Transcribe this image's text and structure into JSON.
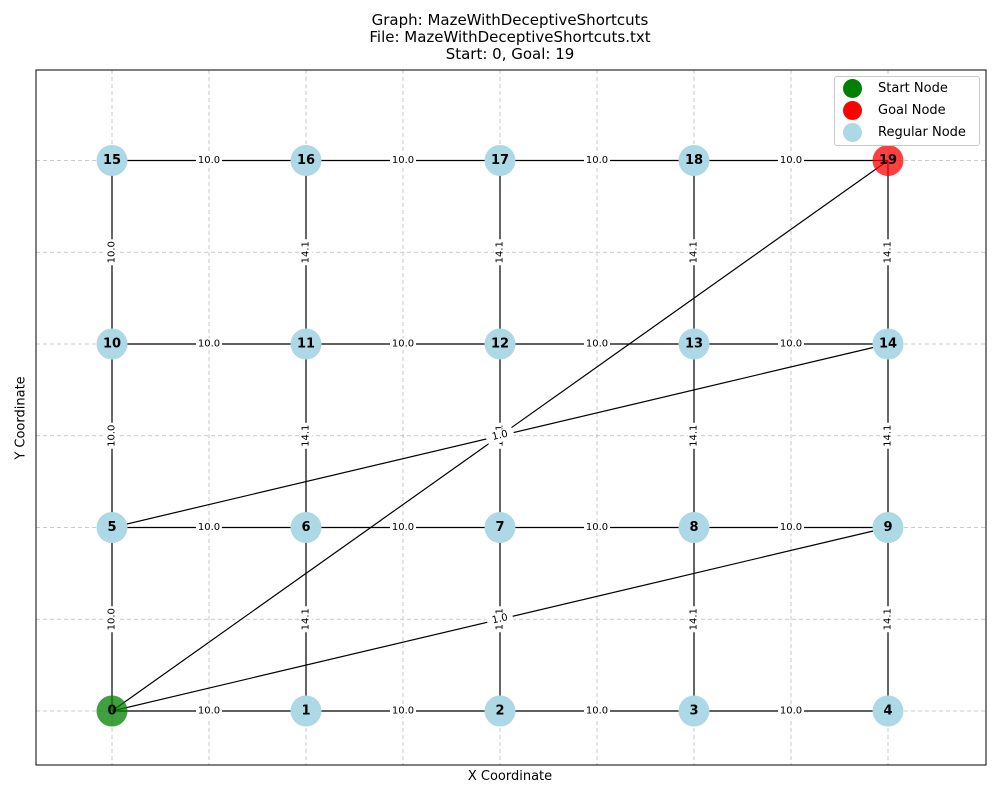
{
  "title": {
    "line1": "Graph: MazeWithDeceptiveShortcuts",
    "line2": "File: MazeWithDeceptiveShortcuts.txt",
    "line3": "Start: 0, Goal: 19"
  },
  "axes": {
    "xlabel": "X Coordinate",
    "ylabel": "Y Coordinate"
  },
  "legend": [
    {
      "label": "Start Node",
      "color": "#008000"
    },
    {
      "label": "Goal Node",
      "color": "#ff0000"
    },
    {
      "label": "Regular Node",
      "color": "#add8e6"
    }
  ],
  "colors": {
    "start": "#008000",
    "goal": "#ff0000",
    "regular": "#add8e6",
    "edge": "#000000",
    "grid": "#bbbbbb"
  },
  "start_node": "0",
  "goal_node": "19",
  "nodes": [
    {
      "id": "0",
      "x": 0,
      "y": 0
    },
    {
      "id": "1",
      "x": 1,
      "y": 0
    },
    {
      "id": "2",
      "x": 2,
      "y": 0
    },
    {
      "id": "3",
      "x": 3,
      "y": 0
    },
    {
      "id": "4",
      "x": 4,
      "y": 0
    },
    {
      "id": "5",
      "x": 0,
      "y": 1
    },
    {
      "id": "6",
      "x": 1,
      "y": 1
    },
    {
      "id": "7",
      "x": 2,
      "y": 1
    },
    {
      "id": "8",
      "x": 3,
      "y": 1
    },
    {
      "id": "9",
      "x": 4,
      "y": 1
    },
    {
      "id": "10",
      "x": 0,
      "y": 2
    },
    {
      "id": "11",
      "x": 1,
      "y": 2
    },
    {
      "id": "12",
      "x": 2,
      "y": 2
    },
    {
      "id": "13",
      "x": 3,
      "y": 2
    },
    {
      "id": "14",
      "x": 4,
      "y": 2
    },
    {
      "id": "15",
      "x": 0,
      "y": 3
    },
    {
      "id": "16",
      "x": 1,
      "y": 3
    },
    {
      "id": "17",
      "x": 2,
      "y": 3
    },
    {
      "id": "18",
      "x": 3,
      "y": 3
    },
    {
      "id": "19",
      "x": 4,
      "y": 3
    }
  ],
  "edges": [
    {
      "from": "0",
      "to": "1",
      "label": "10.0"
    },
    {
      "from": "1",
      "to": "2",
      "label": "10.0"
    },
    {
      "from": "2",
      "to": "3",
      "label": "10.0"
    },
    {
      "from": "3",
      "to": "4",
      "label": "10.0"
    },
    {
      "from": "5",
      "to": "6",
      "label": "10.0"
    },
    {
      "from": "6",
      "to": "7",
      "label": "10.0"
    },
    {
      "from": "7",
      "to": "8",
      "label": "10.0"
    },
    {
      "from": "8",
      "to": "9",
      "label": "10.0"
    },
    {
      "from": "10",
      "to": "11",
      "label": "10.0"
    },
    {
      "from": "11",
      "to": "12",
      "label": "10.0"
    },
    {
      "from": "12",
      "to": "13",
      "label": "10.0"
    },
    {
      "from": "13",
      "to": "14",
      "label": "10.0"
    },
    {
      "from": "15",
      "to": "16",
      "label": "10.0"
    },
    {
      "from": "16",
      "to": "17",
      "label": "10.0"
    },
    {
      "from": "17",
      "to": "18",
      "label": "10.0"
    },
    {
      "from": "18",
      "to": "19",
      "label": "10.0"
    },
    {
      "from": "0",
      "to": "5",
      "label": "10.0"
    },
    {
      "from": "5",
      "to": "10",
      "label": "10.0"
    },
    {
      "from": "10",
      "to": "15",
      "label": "10.0"
    },
    {
      "from": "1",
      "to": "6",
      "label": "14.1"
    },
    {
      "from": "6",
      "to": "11",
      "label": "14.1"
    },
    {
      "from": "11",
      "to": "16",
      "label": "14.1"
    },
    {
      "from": "2",
      "to": "7",
      "label": "14.1"
    },
    {
      "from": "7",
      "to": "12",
      "label": "14.1"
    },
    {
      "from": "12",
      "to": "17",
      "label": "14.1"
    },
    {
      "from": "3",
      "to": "8",
      "label": "14.1"
    },
    {
      "from": "8",
      "to": "13",
      "label": "14.1"
    },
    {
      "from": "13",
      "to": "18",
      "label": "14.1"
    },
    {
      "from": "4",
      "to": "9",
      "label": "14.1"
    },
    {
      "from": "9",
      "to": "14",
      "label": "14.1"
    },
    {
      "from": "14",
      "to": "19",
      "label": "14.1"
    },
    {
      "from": "0",
      "to": "19",
      "label": "1.0"
    },
    {
      "from": "0",
      "to": "9",
      "label": "1.0"
    },
    {
      "from": "5",
      "to": "14",
      "label": "1.0"
    }
  ]
}
